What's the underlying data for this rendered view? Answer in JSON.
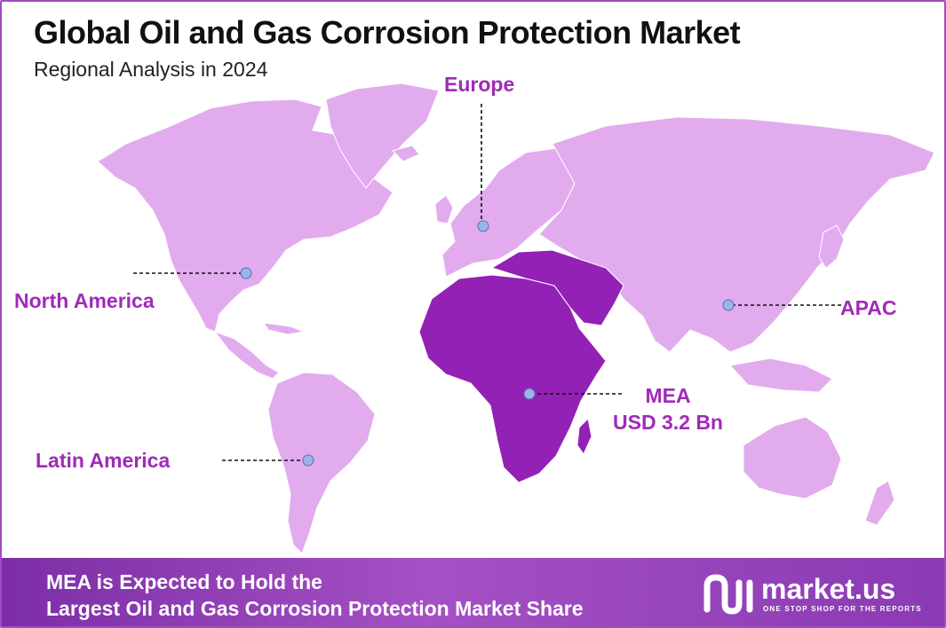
{
  "header": {
    "title": "Global Oil and Gas Corrosion Protection Market",
    "subtitle": "Regional Analysis in 2024"
  },
  "regions": {
    "north_america": "North America",
    "europe": "Europe",
    "apac": "APAC",
    "mea": "MEA",
    "mea_value": "USD 3.2 Bn",
    "latin_america": "Latin America"
  },
  "highlighted_region": "MEA",
  "footer": {
    "line1": "MEA is Expected to Hold the",
    "line2": "Largest Oil and Gas Corrosion Protection Market Share"
  },
  "brand": {
    "name": "market.us",
    "tagline": "ONE STOP SHOP FOR THE REPORTS"
  },
  "colors": {
    "land": "#e2abee",
    "highlight": "#9321b5",
    "label": "#a02ab8",
    "marker": "#9ab5e8",
    "footer": "#8c3bb5"
  }
}
